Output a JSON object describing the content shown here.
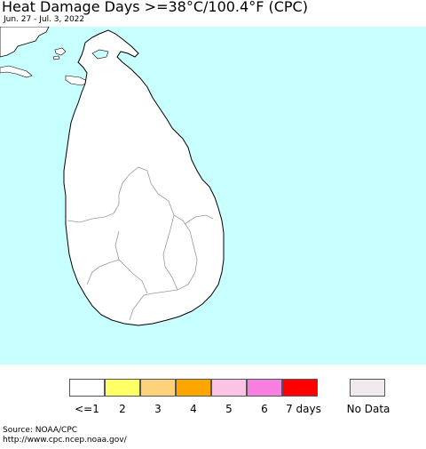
{
  "header": {
    "title": "Heat Damage Days >=38°C/100.4°F (CPC)",
    "date_range": "Jun. 27 - Jul. 3, 2022"
  },
  "map": {
    "water_color": "#c8ffff",
    "land_color": "#ffffff",
    "border_color": "#000000",
    "region_line_color": "#999999",
    "condition": "no heat damage days"
  },
  "legend": {
    "items": [
      {
        "label": "<=1",
        "color": "#ffffff"
      },
      {
        "label": "2",
        "color": "#ffff66"
      },
      {
        "label": "3",
        "color": "#fdd27a"
      },
      {
        "label": "4",
        "color": "#ffa500"
      },
      {
        "label": "5",
        "color": "#fcc4e4"
      },
      {
        "label": "6",
        "color": "#f77fe0"
      },
      {
        "label": "7 days",
        "color": "#ff0000"
      }
    ],
    "no_data": {
      "label": "No Data",
      "color": "#f0eaee"
    }
  },
  "footer": {
    "source": "Source: NOAA/CPC",
    "url": "http://www.cpc.ncep.noaa.gov/"
  }
}
